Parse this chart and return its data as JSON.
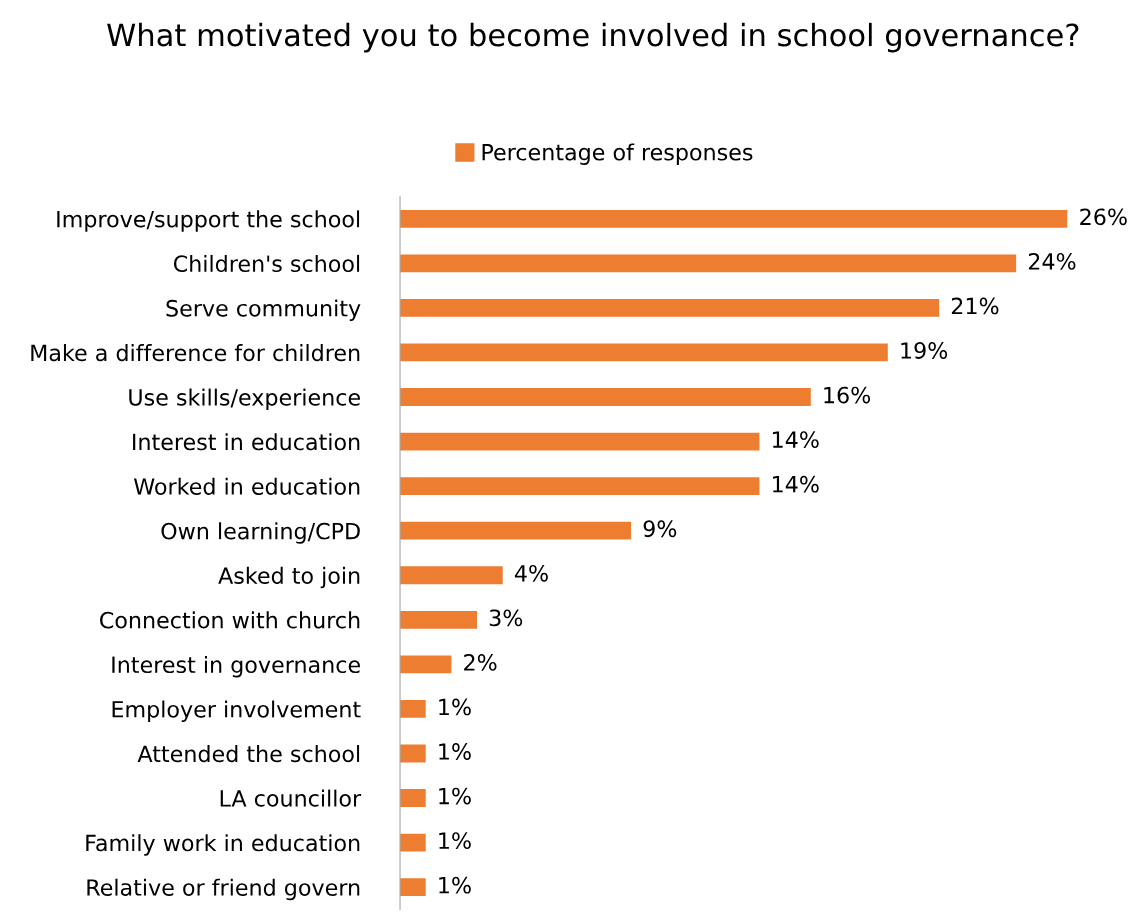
{
  "chart_data": {
    "type": "bar",
    "orientation": "horizontal",
    "title": "What motivated you to become involved in school governance?",
    "categories": [
      "Improve/support the school",
      "Children's school",
      "Serve community",
      "Make a difference for children",
      "Use skills/experience",
      "Interest in education",
      "Worked in education",
      "Own learning/CPD",
      "Asked to join",
      "Connection with church",
      "Interest in governance",
      "Employer involvement",
      "Attended the school",
      "LA councillor",
      "Family work in education",
      "Relative or friend govern"
    ],
    "series": [
      {
        "name": "Percentage of responses",
        "color": "#ed7d31",
        "values": [
          26,
          24,
          21,
          19,
          16,
          14,
          14,
          9,
          4,
          3,
          2,
          1,
          1,
          1,
          1,
          1
        ],
        "value_labels": [
          "26%",
          "24%",
          "21%",
          "19%",
          "16%",
          "14%",
          "14%",
          "9%",
          "4%",
          "3%",
          "2%",
          "1%",
          "1%",
          "1%",
          "1%",
          "1%"
        ]
      }
    ],
    "legend": "top",
    "grid": false,
    "tick_labels": "y"
  }
}
